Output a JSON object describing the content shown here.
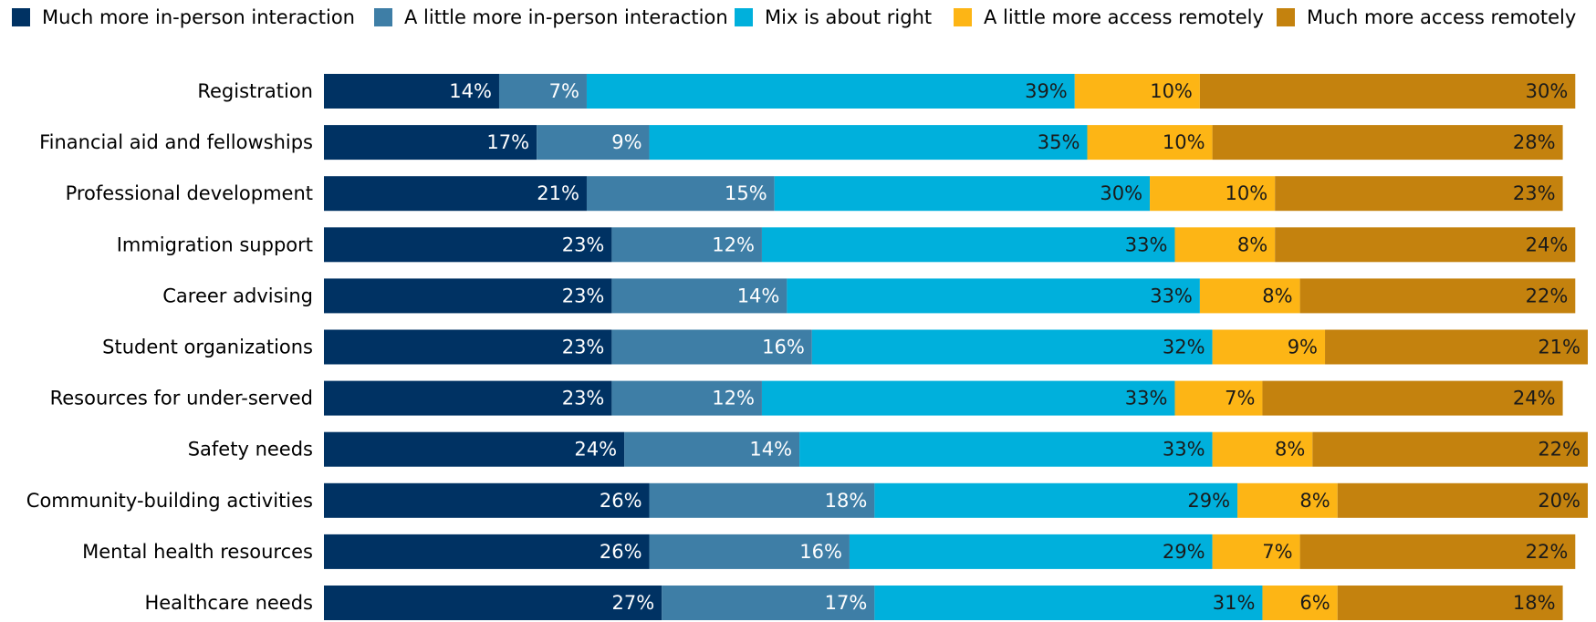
{
  "chart_data": {
    "type": "stacked-bar-horizontal",
    "categories": [
      "Registration",
      "Financial aid and fellowships",
      "Professional development",
      "Immigration support",
      "Career advising",
      "Student organizations",
      "Resources for under-served",
      "Safety needs",
      "Community-building activities",
      "Mental health resources",
      "Healthcare needs"
    ],
    "series": [
      {
        "name": "Much more in-person interaction",
        "color": "#003263",
        "values": [
          14,
          17,
          21,
          23,
          23,
          23,
          23,
          24,
          26,
          26,
          27
        ],
        "value_labels": [
          "14%",
          "17%",
          "21%",
          "23%",
          "23%",
          "23%",
          "23%",
          "24%",
          "26%",
          "26%",
          "27%"
        ]
      },
      {
        "name": "A little more in-person interaction",
        "color": "#3e7ea6",
        "values": [
          7,
          9,
          15,
          12,
          14,
          16,
          12,
          14,
          18,
          16,
          17
        ],
        "value_labels": [
          "7%",
          "9%",
          "15%",
          "12%",
          "14%",
          "16%",
          "12%",
          "14%",
          "18%",
          "16%",
          "17%"
        ]
      },
      {
        "name": "Mix is about right",
        "color": "#00b0dc",
        "values": [
          39,
          35,
          30,
          33,
          33,
          32,
          33,
          33,
          29,
          29,
          31
        ],
        "value_labels": [
          "39%",
          "35%",
          "30%",
          "33%",
          "33%",
          "32%",
          "33%",
          "33%",
          "29%",
          "29%",
          "31%"
        ]
      },
      {
        "name": "A little more access remotely",
        "color": "#fdb515",
        "values": [
          10,
          10,
          10,
          8,
          8,
          9,
          7,
          8,
          8,
          7,
          6
        ],
        "value_labels": [
          "10%",
          "10%",
          "10%",
          "8%",
          "8%",
          "9%",
          "7%",
          "8%",
          "8%",
          "7%",
          "6%"
        ]
      },
      {
        "name": "Much more access remotely",
        "color": "#c4820e",
        "values": [
          30,
          28,
          23,
          24,
          22,
          21,
          24,
          22,
          20,
          22,
          18
        ],
        "value_labels": [
          "30%",
          "28%",
          "23%",
          "24%",
          "22%",
          "21%",
          "24%",
          "22%",
          "20%",
          "22%",
          "18%"
        ]
      }
    ]
  }
}
